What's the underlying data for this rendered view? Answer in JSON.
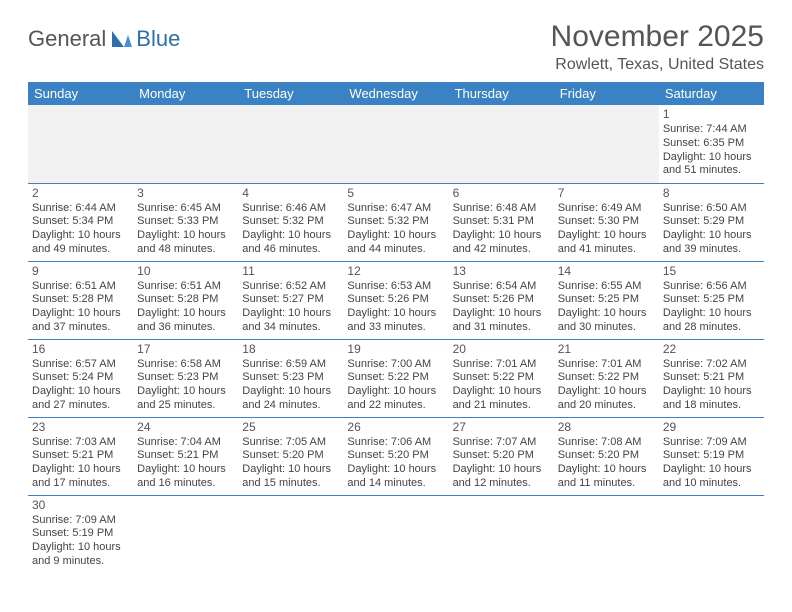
{
  "logo": {
    "text_a": "General",
    "text_b": "Blue"
  },
  "title": "November 2025",
  "location": "Rowlett, Texas, United States",
  "colors": {
    "header_bg": "#3b82c4",
    "header_text": "#ffffff",
    "border": "#3b82c4",
    "text": "#444444",
    "title_text": "#555555",
    "logo_blue": "#2f6fa8"
  },
  "weekdays": [
    "Sunday",
    "Monday",
    "Tuesday",
    "Wednesday",
    "Thursday",
    "Friday",
    "Saturday"
  ],
  "labels": {
    "sunrise": "Sunrise:",
    "sunset": "Sunset:",
    "daylight": "Daylight:"
  },
  "weeks": [
    [
      null,
      null,
      null,
      null,
      null,
      null,
      {
        "n": "1",
        "sr": "7:44 AM",
        "ss": "6:35 PM",
        "dl": "10 hours and 51 minutes."
      }
    ],
    [
      {
        "n": "2",
        "sr": "6:44 AM",
        "ss": "5:34 PM",
        "dl": "10 hours and 49 minutes."
      },
      {
        "n": "3",
        "sr": "6:45 AM",
        "ss": "5:33 PM",
        "dl": "10 hours and 48 minutes."
      },
      {
        "n": "4",
        "sr": "6:46 AM",
        "ss": "5:32 PM",
        "dl": "10 hours and 46 minutes."
      },
      {
        "n": "5",
        "sr": "6:47 AM",
        "ss": "5:32 PM",
        "dl": "10 hours and 44 minutes."
      },
      {
        "n": "6",
        "sr": "6:48 AM",
        "ss": "5:31 PM",
        "dl": "10 hours and 42 minutes."
      },
      {
        "n": "7",
        "sr": "6:49 AM",
        "ss": "5:30 PM",
        "dl": "10 hours and 41 minutes."
      },
      {
        "n": "8",
        "sr": "6:50 AM",
        "ss": "5:29 PM",
        "dl": "10 hours and 39 minutes."
      }
    ],
    [
      {
        "n": "9",
        "sr": "6:51 AM",
        "ss": "5:28 PM",
        "dl": "10 hours and 37 minutes."
      },
      {
        "n": "10",
        "sr": "6:51 AM",
        "ss": "5:28 PM",
        "dl": "10 hours and 36 minutes."
      },
      {
        "n": "11",
        "sr": "6:52 AM",
        "ss": "5:27 PM",
        "dl": "10 hours and 34 minutes."
      },
      {
        "n": "12",
        "sr": "6:53 AM",
        "ss": "5:26 PM",
        "dl": "10 hours and 33 minutes."
      },
      {
        "n": "13",
        "sr": "6:54 AM",
        "ss": "5:26 PM",
        "dl": "10 hours and 31 minutes."
      },
      {
        "n": "14",
        "sr": "6:55 AM",
        "ss": "5:25 PM",
        "dl": "10 hours and 30 minutes."
      },
      {
        "n": "15",
        "sr": "6:56 AM",
        "ss": "5:25 PM",
        "dl": "10 hours and 28 minutes."
      }
    ],
    [
      {
        "n": "16",
        "sr": "6:57 AM",
        "ss": "5:24 PM",
        "dl": "10 hours and 27 minutes."
      },
      {
        "n": "17",
        "sr": "6:58 AM",
        "ss": "5:23 PM",
        "dl": "10 hours and 25 minutes."
      },
      {
        "n": "18",
        "sr": "6:59 AM",
        "ss": "5:23 PM",
        "dl": "10 hours and 24 minutes."
      },
      {
        "n": "19",
        "sr": "7:00 AM",
        "ss": "5:22 PM",
        "dl": "10 hours and 22 minutes."
      },
      {
        "n": "20",
        "sr": "7:01 AM",
        "ss": "5:22 PM",
        "dl": "10 hours and 21 minutes."
      },
      {
        "n": "21",
        "sr": "7:01 AM",
        "ss": "5:22 PM",
        "dl": "10 hours and 20 minutes."
      },
      {
        "n": "22",
        "sr": "7:02 AM",
        "ss": "5:21 PM",
        "dl": "10 hours and 18 minutes."
      }
    ],
    [
      {
        "n": "23",
        "sr": "7:03 AM",
        "ss": "5:21 PM",
        "dl": "10 hours and 17 minutes."
      },
      {
        "n": "24",
        "sr": "7:04 AM",
        "ss": "5:21 PM",
        "dl": "10 hours and 16 minutes."
      },
      {
        "n": "25",
        "sr": "7:05 AM",
        "ss": "5:20 PM",
        "dl": "10 hours and 15 minutes."
      },
      {
        "n": "26",
        "sr": "7:06 AM",
        "ss": "5:20 PM",
        "dl": "10 hours and 14 minutes."
      },
      {
        "n": "27",
        "sr": "7:07 AM",
        "ss": "5:20 PM",
        "dl": "10 hours and 12 minutes."
      },
      {
        "n": "28",
        "sr": "7:08 AM",
        "ss": "5:20 PM",
        "dl": "10 hours and 11 minutes."
      },
      {
        "n": "29",
        "sr": "7:09 AM",
        "ss": "5:19 PM",
        "dl": "10 hours and 10 minutes."
      }
    ],
    [
      {
        "n": "30",
        "sr": "7:09 AM",
        "ss": "5:19 PM",
        "dl": "10 hours and 9 minutes."
      },
      null,
      null,
      null,
      null,
      null,
      null
    ]
  ]
}
